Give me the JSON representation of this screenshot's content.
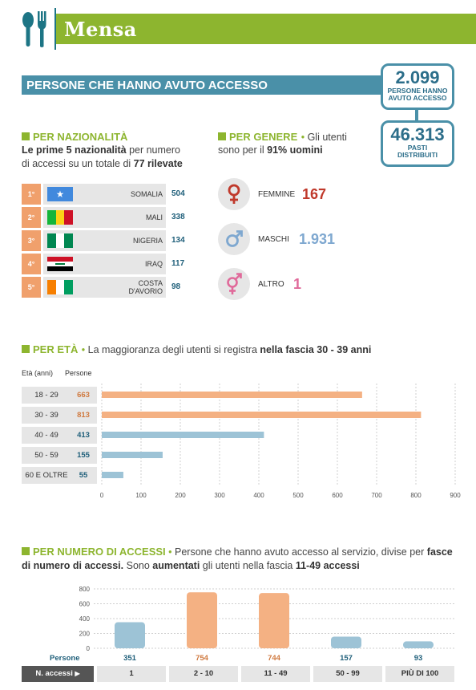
{
  "header": {
    "title": "Mensa"
  },
  "access": {
    "title": "PERSONE CHE HANNO AVUTO ACCESSO",
    "total_people": "2.099",
    "total_people_label_1": "PERSONE HANNO",
    "total_people_label_2": "AVUTO ACCESSO",
    "meals": "46.313",
    "meals_label_1": "PASTI",
    "meals_label_2": "DISTRIBUITI"
  },
  "nationality": {
    "title": "PER NAZIONALITÀ",
    "text_b1": "Le prime 5 nazionalità",
    "text_1": " per numero",
    "text_2": "di accessi su un totale di ",
    "text_b2": "77 rilevate",
    "rows": [
      {
        "rank": "1°",
        "name": "SOMALIA",
        "value": "504",
        "flag": "somalia"
      },
      {
        "rank": "2°",
        "name": "MALI",
        "value": "338",
        "flag": "mali"
      },
      {
        "rank": "3°",
        "name": "NIGERIA",
        "value": "134",
        "flag": "nigeria"
      },
      {
        "rank": "4°",
        "name": "IRAQ",
        "value": "117",
        "flag": "iraq"
      },
      {
        "rank": "5°",
        "name_1": "COSTA",
        "name_2": "D'AVORIO",
        "value": "98",
        "flag": "ivory-coast"
      }
    ]
  },
  "gender": {
    "title": "PER GENERE",
    "text_1": "Gli utenti",
    "text_2": "sono per il ",
    "text_b": "91% uomini",
    "items": [
      {
        "label": "FEMMINE",
        "value": "167",
        "color": "#c0392b",
        "icon": "female-icon"
      },
      {
        "label": "MASCHI",
        "value": "1.931",
        "color": "#7fa8d0",
        "icon": "male-icon"
      },
      {
        "label": "ALTRO",
        "value": "1",
        "color": "#e06a9a",
        "icon": "transgender-icon"
      }
    ]
  },
  "age": {
    "title": "PER ETÀ",
    "text_1": "La maggioranza degli utenti si registra ",
    "text_b": "nella fascia 30 - 39 anni",
    "col1": "Età (anni)",
    "col2": "Persone"
  },
  "accesses": {
    "title": "PER NUMERO DI ACCESSI",
    "text_1": "Persone che hanno avuto accesso al servizio, divise per ",
    "text_b1": "fasce",
    "text_b2": "di numero di accessi.",
    "text_2": " Sono ",
    "text_b3": "aumentati",
    "text_3": " gli utenti nella fascia ",
    "text_b4": "11-49 accessi",
    "row_label": "Persone",
    "axis_label": "N. accessi"
  },
  "chart_data": [
    {
      "type": "bar",
      "orientation": "horizontal",
      "categories": [
        "18 - 29",
        "30 - 39",
        "40 - 49",
        "50 - 59",
        "60 E OLTRE"
      ],
      "values": [
        663,
        813,
        413,
        155,
        55
      ],
      "colors": [
        "#f4b183",
        "#f4b183",
        "#9dc3d6",
        "#9dc3d6",
        "#9dc3d6"
      ],
      "xlim": [
        0,
        900
      ],
      "xticks": [
        0,
        100,
        200,
        300,
        400,
        500,
        600,
        700,
        800,
        900
      ],
      "grid": true
    },
    {
      "type": "bar",
      "categories": [
        "1",
        "2 - 10",
        "11 - 49",
        "50 - 99",
        "PIÙ DI 100"
      ],
      "values": [
        351,
        754,
        744,
        157,
        93
      ],
      "colors": [
        "#9dc3d6",
        "#f4b183",
        "#f4b183",
        "#9dc3d6",
        "#9dc3d6"
      ],
      "ylim": [
        0,
        800
      ],
      "yticks": [
        0,
        200,
        400,
        600,
        800
      ],
      "grid": true
    }
  ]
}
